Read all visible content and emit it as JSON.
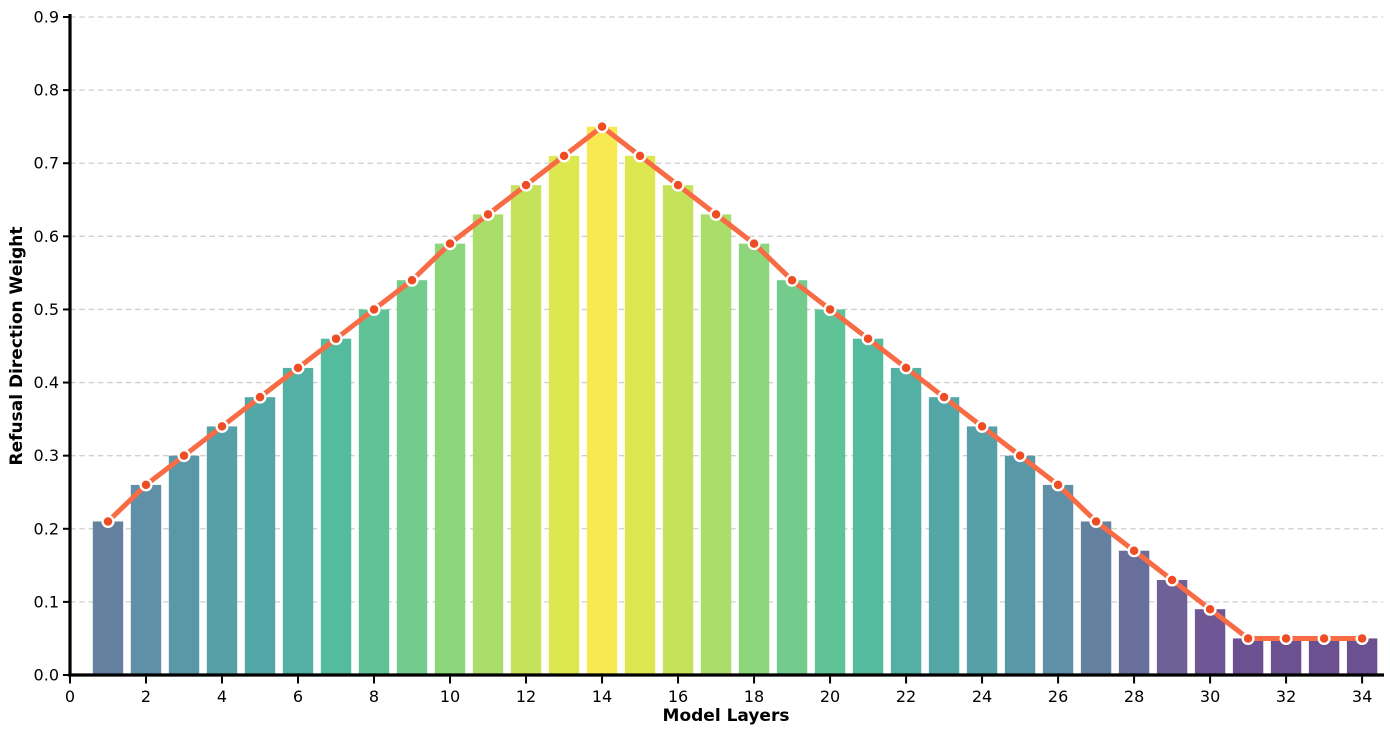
{
  "figure": {
    "background": "#ffffff"
  },
  "chart_data": {
    "type": "bar",
    "overlay": "line",
    "title": "",
    "xlabel": "Model Layers",
    "ylabel": "Refusal Direction Weight",
    "legend": "none",
    "grid": "horizontal-dashed",
    "xlim": [
      0,
      34.55
    ],
    "ylim": [
      0.0,
      0.9
    ],
    "x_ticks": [
      0,
      2,
      4,
      6,
      8,
      10,
      12,
      14,
      16,
      18,
      20,
      22,
      24,
      26,
      28,
      30,
      32,
      34
    ],
    "y_ticks": [
      0.0,
      0.1,
      0.2,
      0.3,
      0.4,
      0.5,
      0.6,
      0.7,
      0.8,
      0.9
    ],
    "y_tick_labels": [
      "0.0",
      "0.1",
      "0.2",
      "0.3",
      "0.4",
      "0.5",
      "0.6",
      "0.7",
      "0.8",
      "0.9"
    ],
    "categories": [
      1,
      2,
      3,
      4,
      5,
      6,
      7,
      8,
      9,
      10,
      11,
      12,
      13,
      14,
      15,
      16,
      17,
      18,
      19,
      20,
      21,
      22,
      23,
      24,
      25,
      26,
      27,
      28,
      29,
      30,
      31,
      32,
      33,
      34
    ],
    "values": [
      0.21,
      0.26,
      0.3,
      0.34,
      0.38,
      0.42,
      0.46,
      0.5,
      0.54,
      0.59,
      0.63,
      0.67,
      0.71,
      0.75,
      0.71,
      0.67,
      0.63,
      0.59,
      0.54,
      0.5,
      0.46,
      0.42,
      0.38,
      0.34,
      0.3,
      0.26,
      0.21,
      0.17,
      0.13,
      0.09,
      0.05,
      0.05,
      0.05,
      0.05
    ],
    "bar_colors": [
      "#64819f",
      "#6090a8",
      "#5998a6",
      "#56a0a8",
      "#53a8a7",
      "#52b0a4",
      "#55bb9f",
      "#5fc397",
      "#73cc8c",
      "#8ed67b",
      "#aadd69",
      "#c5e25b",
      "#dde851",
      "#f7e951",
      "#dde851",
      "#c5e25b",
      "#aadd69",
      "#8ed67b",
      "#73cc8c",
      "#5fc397",
      "#55bb9f",
      "#52b0a4",
      "#53a8a7",
      "#56a0a8",
      "#5998a6",
      "#6090a8",
      "#64819f",
      "#696f9b",
      "#6d6198",
      "#6e5794",
      "#6b5190",
      "#6b5190",
      "#6b5190",
      "#6b5190"
    ],
    "bar_width_units": 0.8,
    "line_color": "#f86b45",
    "marker_color": "#ee4c23",
    "marker_edge_color": "#ffffff",
    "grid_color": "#cfcfcf",
    "axis_color": "#000000",
    "tick_label_color": "#000000"
  }
}
